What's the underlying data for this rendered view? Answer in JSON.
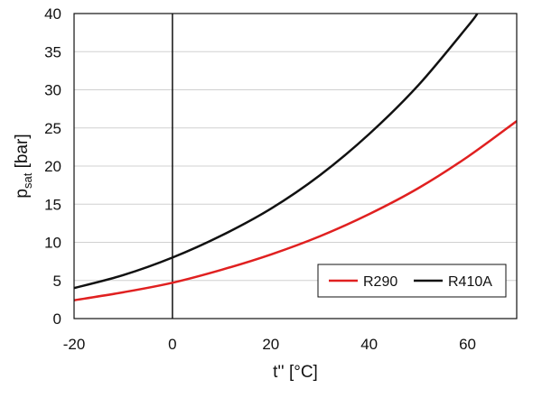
{
  "chart_data": {
    "type": "line",
    "title": "",
    "xlabel": "t'' [°C]",
    "ylabel_main": "p",
    "ylabel_sub": "sat",
    "ylabel_unit": " [bar]",
    "xlim": [
      -20,
      70
    ],
    "ylim": [
      0,
      40
    ],
    "xticks": [
      -20,
      0,
      20,
      40,
      60
    ],
    "yticks": [
      0,
      5,
      10,
      15,
      20,
      25,
      30,
      35,
      40
    ],
    "grid": "horizontal",
    "reference_line_x": 0,
    "legend_position": "bottom-right",
    "series": [
      {
        "name": "R290",
        "color": "#e02020",
        "x": [
          -20,
          -10,
          0,
          10,
          20,
          30,
          40,
          50,
          60,
          70
        ],
        "y": [
          2.4,
          3.45,
          4.7,
          6.4,
          8.4,
          10.8,
          13.7,
          17.1,
          21.2,
          25.9
        ]
      },
      {
        "name": "R410A",
        "color": "#111111",
        "x": [
          -20,
          -10,
          0,
          10,
          20,
          30,
          40,
          50,
          60,
          62
        ],
        "y": [
          4.0,
          5.7,
          8.0,
          10.9,
          14.4,
          18.8,
          24.2,
          30.6,
          38.3,
          40.0
        ]
      }
    ]
  }
}
